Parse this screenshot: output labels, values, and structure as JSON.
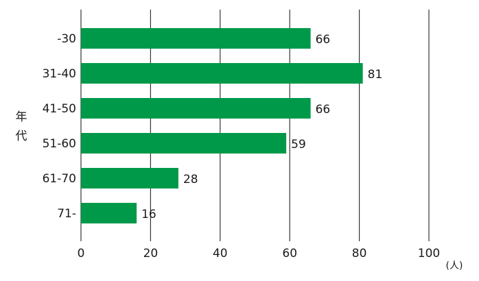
{
  "chart_data": {
    "type": "bar",
    "orientation": "horizontal",
    "categories": [
      "-30",
      "31-40",
      "41-50",
      "51-60",
      "61-70",
      "71-"
    ],
    "values": [
      66,
      81,
      66,
      59,
      28,
      16
    ],
    "title": "",
    "xlabel": "",
    "ylabel": "年代",
    "unit": "(人)",
    "xlim": [
      0,
      100
    ],
    "xticks": [
      "0",
      "20",
      "40",
      "60",
      "80",
      "100"
    ],
    "grid": "vertical",
    "legend": "none",
    "bar_color": "#00994a",
    "value_label_colors": {
      "outside": "#1a1a1a",
      "inside": "#ffffff"
    }
  }
}
